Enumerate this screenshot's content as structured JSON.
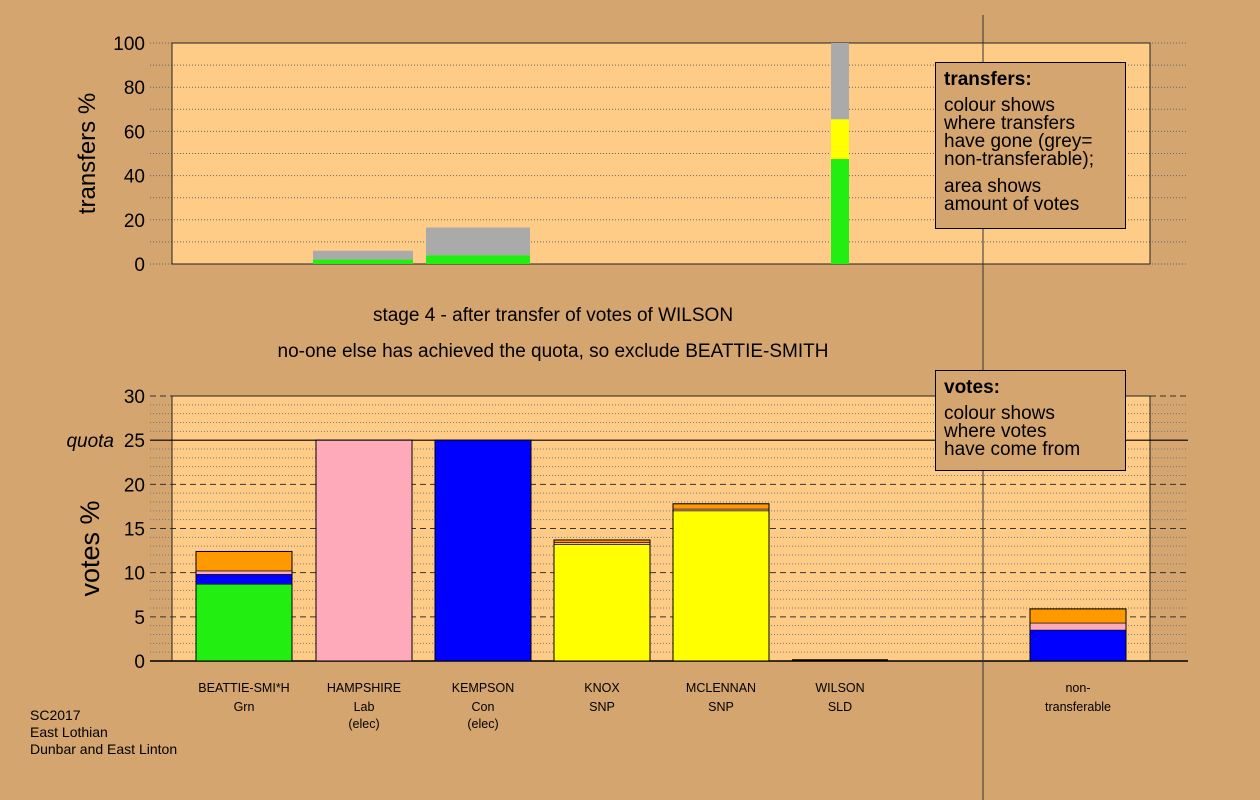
{
  "chart_data": [
    {
      "type": "bar",
      "stacked": true,
      "ylabel": "transfers %",
      "ylim": [
        0,
        100
      ],
      "yticks": [
        0,
        20,
        40,
        60,
        80,
        100
      ],
      "colors": {
        "Grn": "#22ee11",
        "SNP": "#ffff00",
        "non-transferable": "#aaaaaa"
      },
      "bars": [
        {
          "candidate": "HAMPSHIRE",
          "segments": [
            {
              "source": "Grn",
              "value": 2.0
            },
            {
              "source": "non-transferable",
              "value": 4.0
            }
          ]
        },
        {
          "candidate": "KEMPSON",
          "segments": [
            {
              "source": "Grn",
              "value": 4.0
            },
            {
              "source": "non-transferable",
              "value": 12.5
            }
          ]
        },
        {
          "candidate": "WILSON",
          "segments": [
            {
              "source": "Grn",
              "value": 47.5
            },
            {
              "source": "SNP",
              "value": 18.0
            },
            {
              "source": "non-transferable",
              "value": 34.5
            }
          ]
        }
      ],
      "legend": {
        "title": "transfers:",
        "lines1": [
          "colour shows",
          "where transfers",
          "have gone (grey=",
          "non-transferable);"
        ],
        "lines2": [
          "area shows",
          "amount of votes"
        ]
      }
    },
    {
      "type": "bar",
      "stacked": true,
      "ylabel": "votes %",
      "ylim": [
        0,
        30
      ],
      "yticks": [
        0,
        5,
        10,
        15,
        20,
        25,
        30
      ],
      "quota": 25,
      "quota_label": "quota",
      "categories": [
        {
          "name": "BEATTIE-SMI*H",
          "party": "Grn",
          "note": ""
        },
        {
          "name": "HAMPSHIRE",
          "party": "Lab",
          "note": "(elec)"
        },
        {
          "name": "KEMPSON",
          "party": "Con",
          "note": "(elec)"
        },
        {
          "name": "KNOX",
          "party": "SNP",
          "note": ""
        },
        {
          "name": "MCLENNAN",
          "party": "SNP",
          "note": ""
        },
        {
          "name": "WILSON",
          "party": "SLD",
          "note": ""
        },
        {
          "name": "non-",
          "party": "transferable",
          "note": ""
        }
      ],
      "colors": {
        "Grn": "#22ee11",
        "Con": "#0000ff",
        "Lab": "#ffaabb",
        "SNP": "#ffff00",
        "SLD": "#ff9900"
      },
      "bars": [
        {
          "candidate": "BEATTIE-SMI*H",
          "segments": [
            {
              "source": "Grn",
              "value": 8.7
            },
            {
              "source": "Con",
              "value": 1.1
            },
            {
              "source": "Lab",
              "value": 0.4
            },
            {
              "source": "SLD",
              "value": 2.2
            }
          ]
        },
        {
          "candidate": "HAMPSHIRE",
          "segments": [
            {
              "source": "Lab",
              "value": 25.0
            }
          ]
        },
        {
          "candidate": "KEMPSON",
          "segments": [
            {
              "source": "Con",
              "value": 25.0
            }
          ]
        },
        {
          "candidate": "KNOX",
          "segments": [
            {
              "source": "SNP",
              "value": 13.2
            },
            {
              "source": "Lab",
              "value": 0.2
            },
            {
              "source": "SLD",
              "value": 0.3
            }
          ]
        },
        {
          "candidate": "MCLENNAN",
          "segments": [
            {
              "source": "SNP",
              "value": 17.0
            },
            {
              "source": "Lab",
              "value": 0.2
            },
            {
              "source": "SLD",
              "value": 0.6
            }
          ]
        },
        {
          "candidate": "WILSON",
          "segments": []
        },
        {
          "candidate": "non-",
          "segments": [
            {
              "source": "Con",
              "value": 3.5
            },
            {
              "source": "Lab",
              "value": 0.8
            },
            {
              "source": "SLD",
              "value": 1.6
            }
          ]
        }
      ],
      "legend": {
        "title": "votes:",
        "lines1": [
          "colour shows",
          "where votes",
          "have come from"
        ]
      }
    }
  ],
  "stage_message": "stage 4 - after transfer of votes of WILSON",
  "action_message": "no-one else has achieved the quota, so exclude BEATTIE-SMITH",
  "footer": [
    "SC2017",
    "East Lothian",
    "Dunbar and East Linton"
  ]
}
